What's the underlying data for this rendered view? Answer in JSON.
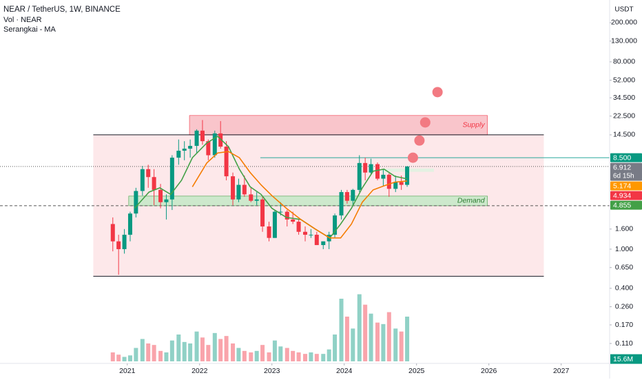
{
  "chart_data": {
    "type": "candlestick",
    "title": "NEAR / TetherUS, 1W, BINANCE",
    "indicators": [
      "Vol · NEAR",
      "Serangkai - MA"
    ],
    "currency": "USDT",
    "log_scale": true,
    "grid": false,
    "xlim": [
      2019.24,
      2027.67
    ],
    "xticks": [
      2021,
      2022,
      2023,
      2024,
      2025,
      2026,
      2027
    ],
    "ylim": [
      0.069,
      340
    ],
    "yticks": [
      {
        "value": 200,
        "label": "200.000"
      },
      {
        "value": 130,
        "label": "130.000"
      },
      {
        "value": 80,
        "label": "80.000"
      },
      {
        "value": 52,
        "label": "52.000"
      },
      {
        "value": 34.5,
        "label": "34.500"
      },
      {
        "value": 22.5,
        "label": "22.500"
      },
      {
        "value": 14.5,
        "label": "14.500"
      },
      {
        "value": 1.6,
        "label": "1.600"
      },
      {
        "value": 1,
        "label": "1.000"
      },
      {
        "value": 0.65,
        "label": "0.650"
      },
      {
        "value": 0.4,
        "label": "0.400"
      },
      {
        "value": 0.26,
        "label": "0.260"
      },
      {
        "value": 0.17,
        "label": "0.170"
      },
      {
        "value": 0.11,
        "label": "0.110"
      }
    ],
    "up_color": "#089981",
    "down_color": "#f23645",
    "x": [
      2020.8,
      2020.88,
      2020.96,
      2021.04,
      2021.12,
      2021.21,
      2021.29,
      2021.37,
      2021.46,
      2021.54,
      2021.62,
      2021.71,
      2021.79,
      2021.87,
      2021.96,
      2022.04,
      2022.12,
      2022.21,
      2022.29,
      2022.37,
      2022.46,
      2022.54,
      2022.62,
      2022.71,
      2022.79,
      2022.87,
      2022.96,
      2023.04,
      2023.12,
      2023.21,
      2023.29,
      2023.37,
      2023.46,
      2023.54,
      2023.62,
      2023.71,
      2023.79,
      2023.87,
      2023.96,
      2024.04,
      2024.12,
      2024.21,
      2024.29,
      2024.37,
      2024.46,
      2024.54,
      2024.62,
      2024.71,
      2024.79,
      2024.87
    ],
    "open": [
      1.8,
      1.2,
      1.0,
      1.4,
      2.3,
      3.9,
      6.5,
      5.4,
      4.0,
      3.0,
      3.2,
      8.5,
      10.0,
      10.5,
      11.2,
      16.0,
      12.5,
      9.0,
      15.0,
      11.0,
      5.5,
      3.2,
      4.5,
      3.6,
      3.1,
      3.2,
      1.7,
      1.3,
      2.4,
      2.4,
      2.0,
      1.9,
      1.5,
      1.4,
      1.4,
      1.1,
      1.2,
      1.4,
      2.2,
      3.8,
      3.1,
      4.0,
      7.5,
      6.0,
      7.3,
      5.2,
      5.7,
      4.1,
      4.8,
      4.5
    ],
    "high": [
      2.1,
      1.4,
      1.6,
      2.4,
      4.2,
      7.0,
      7.2,
      6.5,
      4.6,
      3.6,
      9.0,
      13.0,
      12.5,
      13.0,
      16.5,
      20.5,
      13.0,
      16.0,
      20.0,
      12.5,
      6.0,
      5.2,
      5.6,
      4.2,
      3.8,
      3.5,
      1.9,
      2.5,
      3.0,
      2.5,
      2.4,
      2.0,
      1.7,
      1.6,
      1.5,
      1.2,
      1.5,
      2.3,
      4.0,
      4.0,
      4.1,
      9.0,
      8.5,
      8.3,
      7.6,
      6.5,
      5.9,
      5.6,
      5.6,
      7.0
    ],
    "low": [
      0.95,
      0.55,
      0.9,
      1.2,
      2.1,
      3.5,
      4.2,
      2.8,
      2.6,
      2.0,
      2.5,
      7.2,
      8.0,
      8.5,
      9.5,
      11.5,
      8.0,
      8.5,
      10.5,
      5.0,
      2.8,
      3.0,
      3.4,
      3.0,
      2.8,
      1.5,
      1.2,
      1.3,
      2.2,
      1.7,
      1.8,
      1.4,
      1.2,
      1.3,
      1.1,
      1.0,
      1.0,
      1.3,
      2.0,
      2.9,
      2.8,
      3.8,
      5.0,
      5.8,
      5.0,
      4.4,
      3.4,
      3.8,
      4.0,
      4.3
    ],
    "close": [
      1.2,
      1.0,
      1.4,
      2.3,
      3.9,
      6.5,
      5.4,
      4.0,
      3.0,
      3.2,
      8.5,
      10.0,
      10.5,
      11.2,
      16.0,
      12.5,
      9.0,
      15.0,
      11.0,
      5.5,
      3.2,
      4.5,
      3.6,
      3.1,
      3.2,
      1.7,
      1.3,
      2.4,
      2.4,
      2.0,
      1.9,
      1.5,
      1.4,
      1.4,
      1.1,
      1.2,
      1.4,
      2.2,
      3.8,
      3.1,
      4.0,
      7.5,
      6.0,
      7.3,
      5.2,
      5.7,
      4.1,
      4.8,
      4.5,
      6.912
    ],
    "volume": [
      60,
      45,
      30,
      40,
      90,
      150,
      120,
      110,
      70,
      60,
      140,
      180,
      130,
      120,
      200,
      160,
      110,
      190,
      150,
      170,
      120,
      90,
      70,
      60,
      70,
      110,
      60,
      140,
      100,
      90,
      70,
      60,
      50,
      60,
      50,
      50,
      80,
      180,
      420,
      300,
      220,
      450,
      380,
      320,
      260,
      250,
      330,
      220,
      200,
      300
    ],
    "volume_ylim": [
      0,
      600
    ],
    "last_volume": {
      "value": 15.6,
      "label": "15.6M"
    },
    "series": [
      {
        "color": "#43a047",
        "x": [
          2021.1,
          2021.3,
          2021.45,
          2021.6,
          2021.75,
          2021.9,
          2022.1,
          2022.25,
          2022.4,
          2022.55,
          2022.7,
          2022.85,
          2023.0,
          2023.2,
          2023.4,
          2023.6,
          2023.8,
          2023.95,
          2024.1,
          2024.25,
          2024.4,
          2024.55,
          2024.7,
          2024.87
        ],
        "values": [
          2.6,
          3.8,
          4.2,
          3.6,
          5.0,
          8.5,
          12.0,
          14.0,
          11.0,
          6.5,
          4.3,
          3.6,
          2.6,
          2.1,
          2.0,
          1.6,
          1.3,
          1.8,
          2.6,
          4.2,
          6.2,
          6.5,
          5.5,
          5.174
        ]
      },
      {
        "color": "#f57c00",
        "x": [
          2021.9,
          2022.1,
          2022.25,
          2022.4,
          2022.55,
          2022.7,
          2022.85,
          2023.0,
          2023.2,
          2023.4,
          2023.6,
          2023.8,
          2023.95,
          2024.1,
          2024.25,
          2024.4,
          2024.55,
          2024.7,
          2024.87
        ],
        "values": [
          4.3,
          7.5,
          9.5,
          9.8,
          8.5,
          6.0,
          4.5,
          3.5,
          2.6,
          2.0,
          1.6,
          1.3,
          1.3,
          1.8,
          3.0,
          4.0,
          4.4,
          4.8,
          4.934
        ]
      }
    ],
    "zones": [
      {
        "xlim": [
          2020.53,
          2026.76
        ],
        "ylim": [
          0.53,
          14.5
        ],
        "color": "#fde8ea"
      },
      {
        "name": "Supply",
        "xlim": [
          2021.86,
          2025.98
        ],
        "ylim": [
          14.5,
          22.8
        ],
        "color": "#f9c5cb"
      },
      {
        "name": "Demand",
        "xlim": [
          2021.02,
          2025.98
        ],
        "ylim": [
          2.76,
          3.46
        ],
        "color": "#cde8cc"
      },
      {
        "xlim": [
          2024.52,
          2025.24
        ],
        "ylim": [
          6.1,
          6.6
        ],
        "color": "#e3f1e2"
      }
    ],
    "levels": [
      {
        "value": 14.5,
        "xlim": [
          2020.53,
          2026.76
        ],
        "color": "#131722",
        "style": "solid"
      },
      {
        "value": 0.53,
        "xlim": [
          2020.53,
          2026.76
        ],
        "color": "#131722",
        "style": "solid"
      },
      {
        "value": 8.5,
        "xlim": [
          2022.84,
          2027.67
        ],
        "color": "#26a69a",
        "style": "solid"
      },
      {
        "value": 6.912,
        "xlim": [
          2019.24,
          2027.67
        ],
        "color": "#555",
        "style": "dotted"
      },
      {
        "value": 2.76,
        "xlim": [
          2019.24,
          2027.67
        ],
        "color": "#555",
        "style": "dashed"
      }
    ],
    "targets": {
      "color": "#f27a82",
      "x": [
        2024.95,
        2025.04,
        2025.12,
        2025.29
      ],
      "values": [
        8.5,
        12.7,
        19.4,
        39.4
      ]
    },
    "price_tags": [
      {
        "value": 8.5,
        "label": "8.500",
        "color": "#089981"
      },
      {
        "value": 6.912,
        "label": "6.912",
        "color": "#787b86",
        "countdown": "6d 15h"
      },
      {
        "value": 5.174,
        "color": "#ff9800"
      },
      {
        "value": 4.934,
        "color": "#f23645"
      },
      {
        "value": 4.855,
        "color": "#43a047"
      }
    ]
  }
}
